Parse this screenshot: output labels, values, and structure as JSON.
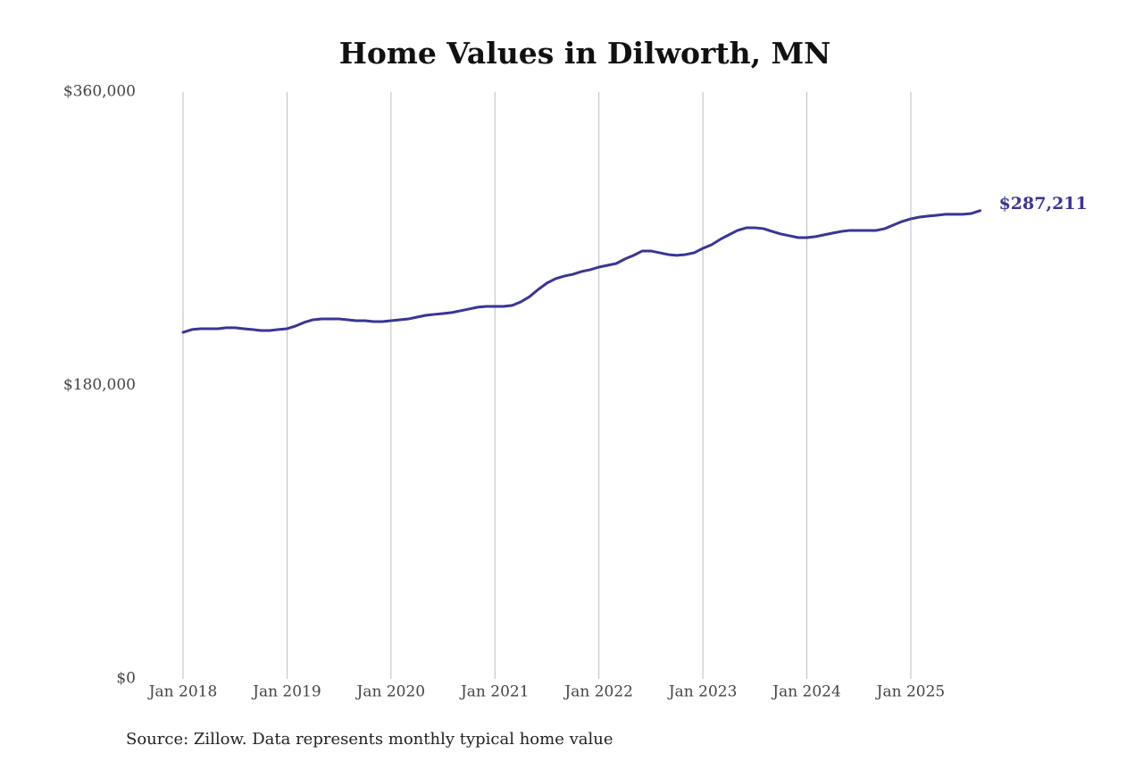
{
  "chart_data": {
    "type": "line",
    "title": "Home Values in Dilworth, MN",
    "source": "Source: Zillow. Data represents monthly typical home value",
    "categories": [
      "Jan 2018",
      null,
      null,
      null,
      null,
      null,
      null,
      null,
      null,
      null,
      null,
      null,
      "Jan 2019",
      null,
      null,
      null,
      null,
      null,
      null,
      null,
      null,
      null,
      null,
      null,
      "Jan 2020",
      null,
      null,
      null,
      null,
      null,
      null,
      null,
      null,
      null,
      null,
      null,
      "Jan 2021",
      null,
      null,
      null,
      null,
      null,
      null,
      null,
      null,
      null,
      null,
      null,
      "Jan 2022",
      null,
      null,
      null,
      null,
      null,
      null,
      null,
      null,
      null,
      null,
      null,
      "Jan 2023",
      null,
      null,
      null,
      null,
      null,
      null,
      null,
      null,
      null,
      null,
      null,
      "Jan 2024",
      null,
      null,
      null,
      null,
      null,
      null,
      null,
      null,
      null,
      null,
      null,
      "Jan 2025",
      null,
      null,
      null,
      null,
      null,
      null,
      null,
      null
    ],
    "values": [
      212600,
      214300,
      214800,
      214800,
      214800,
      215400,
      215400,
      214800,
      214300,
      213700,
      213700,
      214300,
      214800,
      216500,
      218700,
      220300,
      220800,
      220800,
      220800,
      220300,
      219700,
      219700,
      219200,
      219200,
      219700,
      220300,
      220800,
      221900,
      223000,
      223600,
      224100,
      224700,
      225800,
      226900,
      228000,
      228500,
      228500,
      228500,
      229100,
      231300,
      234500,
      238900,
      242800,
      245500,
      247100,
      248200,
      249900,
      251000,
      252600,
      253700,
      254800,
      257600,
      259800,
      262500,
      262500,
      261400,
      260300,
      259800,
      260300,
      261400,
      264100,
      266300,
      269600,
      272400,
      275100,
      276700,
      276700,
      276200,
      274500,
      272900,
      271800,
      270700,
      270700,
      271300,
      272400,
      273500,
      274500,
      275100,
      275100,
      275100,
      275100,
      276200,
      278400,
      280600,
      282200,
      283300,
      283900,
      284400,
      285000,
      285000,
      285000,
      285500,
      287211
    ],
    "value_labels": [
      null,
      null,
      null,
      null,
      null,
      null,
      null,
      null,
      null,
      null,
      null,
      null,
      null,
      null,
      null,
      null,
      null,
      null,
      null,
      null,
      null,
      null,
      null,
      null,
      null,
      null,
      null,
      null,
      null,
      null,
      null,
      null,
      null,
      null,
      null,
      null,
      null,
      null,
      null,
      null,
      null,
      null,
      null,
      null,
      null,
      null,
      null,
      null,
      null,
      null,
      null,
      null,
      null,
      null,
      null,
      null,
      null,
      null,
      null,
      null,
      null,
      null,
      null,
      null,
      null,
      null,
      null,
      null,
      null,
      null,
      null,
      null,
      null,
      null,
      null,
      null,
      null,
      null,
      null,
      null,
      null,
      null,
      null,
      null,
      null,
      null,
      null,
      null,
      null,
      null,
      null,
      null,
      "$287,211"
    ],
    "color": "#3a3596",
    "ylim": [
      0,
      360000
    ],
    "yticks": [
      {
        "value": 0,
        "label": "$0"
      },
      {
        "value": 180000,
        "label": "$180,000"
      },
      {
        "value": 360000,
        "label": "$360,000"
      }
    ],
    "grid": "x"
  }
}
